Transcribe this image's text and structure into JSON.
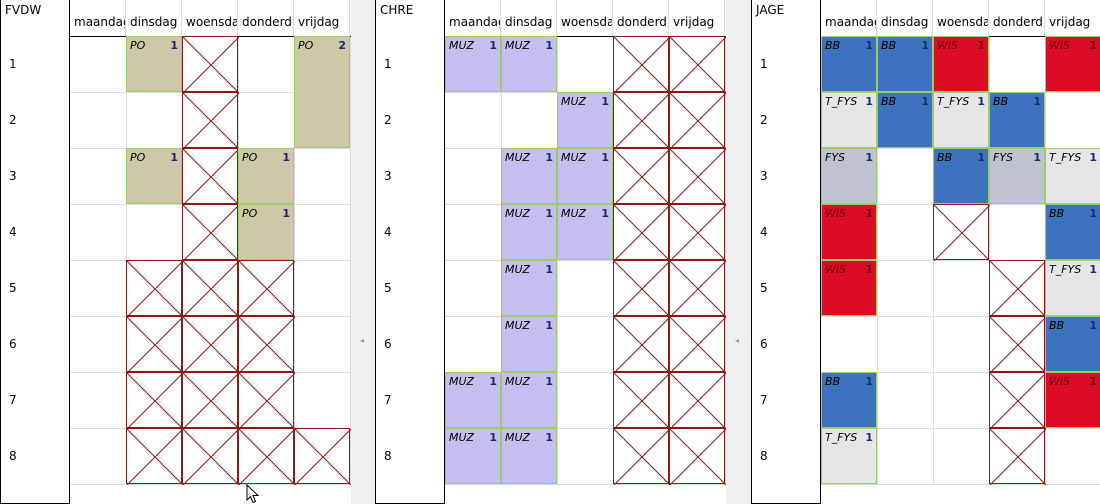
{
  "days": [
    "maandag",
    "dinsdag",
    "woensda",
    "donderd",
    "vrijdag"
  ],
  "periods": [
    "1",
    "2",
    "3",
    "4",
    "5",
    "6",
    "7",
    "8"
  ],
  "panels": [
    {
      "teacher": "FVDW",
      "cells": [
        {
          "day": 1,
          "period": 0,
          "type": "lesson",
          "code": "PO",
          "count": "1",
          "style": "po"
        },
        {
          "day": 2,
          "period": 0,
          "type": "blocked"
        },
        {
          "day": 4,
          "period": 0,
          "type": "lesson",
          "code": "PO",
          "count": "2",
          "style": "po",
          "span": 2
        },
        {
          "day": 2,
          "period": 1,
          "type": "blocked"
        },
        {
          "day": 1,
          "period": 2,
          "type": "lesson",
          "code": "PO",
          "count": "1",
          "style": "po"
        },
        {
          "day": 2,
          "period": 2,
          "type": "blocked"
        },
        {
          "day": 3,
          "period": 2,
          "type": "lesson",
          "code": "PO",
          "count": "1",
          "style": "po"
        },
        {
          "day": 2,
          "period": 3,
          "type": "blocked"
        },
        {
          "day": 3,
          "period": 3,
          "type": "lesson",
          "code": "PO",
          "count": "1",
          "style": "po"
        },
        {
          "day": 1,
          "period": 4,
          "type": "blocked"
        },
        {
          "day": 2,
          "period": 4,
          "type": "blocked"
        },
        {
          "day": 3,
          "period": 4,
          "type": "blocked"
        },
        {
          "day": 1,
          "period": 5,
          "type": "blocked"
        },
        {
          "day": 2,
          "period": 5,
          "type": "blocked"
        },
        {
          "day": 3,
          "period": 5,
          "type": "blocked"
        },
        {
          "day": 1,
          "period": 6,
          "type": "blocked"
        },
        {
          "day": 2,
          "period": 6,
          "type": "blocked"
        },
        {
          "day": 3,
          "period": 6,
          "type": "blocked"
        },
        {
          "day": 1,
          "period": 7,
          "type": "blocked"
        },
        {
          "day": 2,
          "period": 7,
          "type": "blocked"
        },
        {
          "day": 3,
          "period": 7,
          "type": "blocked"
        },
        {
          "day": 4,
          "period": 7,
          "type": "blocked"
        }
      ]
    },
    {
      "teacher": "CHRE",
      "cells": [
        {
          "day": 0,
          "period": 0,
          "type": "lesson",
          "code": "MUZ",
          "count": "1",
          "style": "muz"
        },
        {
          "day": 1,
          "period": 0,
          "type": "lesson",
          "code": "MUZ",
          "count": "1",
          "style": "muz"
        },
        {
          "day": 3,
          "period": 0,
          "type": "blocked"
        },
        {
          "day": 4,
          "period": 0,
          "type": "blocked"
        },
        {
          "day": 2,
          "period": 1,
          "type": "lesson",
          "code": "MUZ",
          "count": "1",
          "style": "muz"
        },
        {
          "day": 3,
          "period": 1,
          "type": "blocked"
        },
        {
          "day": 4,
          "period": 1,
          "type": "blocked"
        },
        {
          "day": 1,
          "period": 2,
          "type": "lesson",
          "code": "MUZ",
          "count": "1",
          "style": "muz"
        },
        {
          "day": 2,
          "period": 2,
          "type": "lesson",
          "code": "MUZ",
          "count": "1",
          "style": "muz"
        },
        {
          "day": 3,
          "period": 2,
          "type": "blocked"
        },
        {
          "day": 4,
          "period": 2,
          "type": "blocked"
        },
        {
          "day": 1,
          "period": 3,
          "type": "lesson",
          "code": "MUZ",
          "count": "1",
          "style": "muz"
        },
        {
          "day": 2,
          "period": 3,
          "type": "lesson",
          "code": "MUZ",
          "count": "1",
          "style": "muz"
        },
        {
          "day": 3,
          "period": 3,
          "type": "blocked"
        },
        {
          "day": 4,
          "period": 3,
          "type": "blocked"
        },
        {
          "day": 1,
          "period": 4,
          "type": "lesson",
          "code": "MUZ",
          "count": "1",
          "style": "muz"
        },
        {
          "day": 3,
          "period": 4,
          "type": "blocked"
        },
        {
          "day": 4,
          "period": 4,
          "type": "blocked"
        },
        {
          "day": 1,
          "period": 5,
          "type": "lesson",
          "code": "MUZ",
          "count": "1",
          "style": "muz"
        },
        {
          "day": 3,
          "period": 5,
          "type": "blocked"
        },
        {
          "day": 4,
          "period": 5,
          "type": "blocked"
        },
        {
          "day": 0,
          "period": 6,
          "type": "lesson",
          "code": "MUZ",
          "count": "1",
          "style": "muz"
        },
        {
          "day": 1,
          "period": 6,
          "type": "lesson",
          "code": "MUZ",
          "count": "1",
          "style": "muz"
        },
        {
          "day": 3,
          "period": 6,
          "type": "blocked"
        },
        {
          "day": 4,
          "period": 6,
          "type": "blocked"
        },
        {
          "day": 0,
          "period": 7,
          "type": "lesson",
          "code": "MUZ",
          "count": "1",
          "style": "muz"
        },
        {
          "day": 1,
          "period": 7,
          "type": "lesson",
          "code": "MUZ",
          "count": "1",
          "style": "muz"
        },
        {
          "day": 3,
          "period": 7,
          "type": "blocked"
        },
        {
          "day": 4,
          "period": 7,
          "type": "blocked"
        }
      ]
    },
    {
      "teacher": "JAGE",
      "cells": [
        {
          "day": 0,
          "period": 0,
          "type": "lesson",
          "code": "BB",
          "count": "1",
          "style": "bb"
        },
        {
          "day": 1,
          "period": 0,
          "type": "lesson",
          "code": "BB",
          "count": "1",
          "style": "bb"
        },
        {
          "day": 2,
          "period": 0,
          "type": "lesson",
          "code": "WIS",
          "count": "1",
          "style": "wis"
        },
        {
          "day": 4,
          "period": 0,
          "type": "lesson",
          "code": "WIS",
          "count": "1",
          "style": "wis"
        },
        {
          "day": 0,
          "period": 1,
          "type": "lesson",
          "code": "T_FYS",
          "count": "1",
          "style": "tfys"
        },
        {
          "day": 1,
          "period": 1,
          "type": "lesson",
          "code": "BB",
          "count": "1",
          "style": "bb"
        },
        {
          "day": 2,
          "period": 1,
          "type": "lesson",
          "code": "T_FYS",
          "count": "1",
          "style": "tfys"
        },
        {
          "day": 3,
          "period": 1,
          "type": "lesson",
          "code": "BB",
          "count": "1",
          "style": "bb"
        },
        {
          "day": 0,
          "period": 2,
          "type": "lesson",
          "code": "FYS",
          "count": "1",
          "style": "fys"
        },
        {
          "day": 2,
          "period": 2,
          "type": "lesson",
          "code": "BB",
          "count": "1",
          "style": "bb"
        },
        {
          "day": 3,
          "period": 2,
          "type": "lesson",
          "code": "FYS",
          "count": "1",
          "style": "fys"
        },
        {
          "day": 4,
          "period": 2,
          "type": "lesson",
          "code": "T_FYS",
          "count": "1",
          "style": "tfys"
        },
        {
          "day": 0,
          "period": 3,
          "type": "lesson",
          "code": "WIS",
          "count": "1",
          "style": "wis"
        },
        {
          "day": 2,
          "period": 3,
          "type": "blocked"
        },
        {
          "day": 4,
          "period": 3,
          "type": "lesson",
          "code": "BB",
          "count": "1",
          "style": "bb"
        },
        {
          "day": 0,
          "period": 4,
          "type": "lesson",
          "code": "WIS",
          "count": "1",
          "style": "wis"
        },
        {
          "day": 3,
          "period": 4,
          "type": "blocked"
        },
        {
          "day": 4,
          "period": 4,
          "type": "lesson",
          "code": "T_FYS",
          "count": "1",
          "style": "tfys"
        },
        {
          "day": 3,
          "period": 5,
          "type": "blocked"
        },
        {
          "day": 4,
          "period": 5,
          "type": "lesson",
          "code": "BB",
          "count": "1",
          "style": "bb"
        },
        {
          "day": 0,
          "period": 6,
          "type": "lesson",
          "code": "BB",
          "count": "1",
          "style": "bb"
        },
        {
          "day": 3,
          "period": 6,
          "type": "blocked"
        },
        {
          "day": 4,
          "period": 6,
          "type": "lesson",
          "code": "WIS",
          "count": "1",
          "style": "wis"
        },
        {
          "day": 0,
          "period": 7,
          "type": "lesson",
          "code": "T_FYS",
          "count": "1",
          "style": "tfys"
        },
        {
          "day": 3,
          "period": 7,
          "type": "blocked"
        }
      ]
    }
  ]
}
